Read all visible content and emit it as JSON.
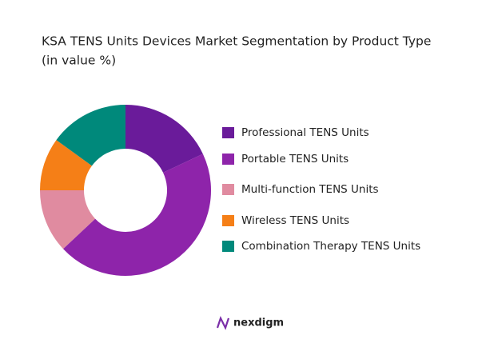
{
  "chart_data": {
    "type": "donut",
    "title": "KSA TENS Units Devices Market Segmentation by Product Type",
    "subtitle": "(in value %)",
    "categories": [
      "Professional TENS Units",
      "Portable TENS Units",
      "Multi-function TENS Units",
      "Wireless TENS Units",
      "Combination Therapy TENS Units"
    ],
    "values": [
      18,
      45,
      12,
      10,
      15
    ],
    "colors": [
      "#6a1b9a",
      "#8e24aa",
      "#e08ba0",
      "#f57f17",
      "#00897b"
    ],
    "legend": "right",
    "brand": "nexdigm"
  }
}
